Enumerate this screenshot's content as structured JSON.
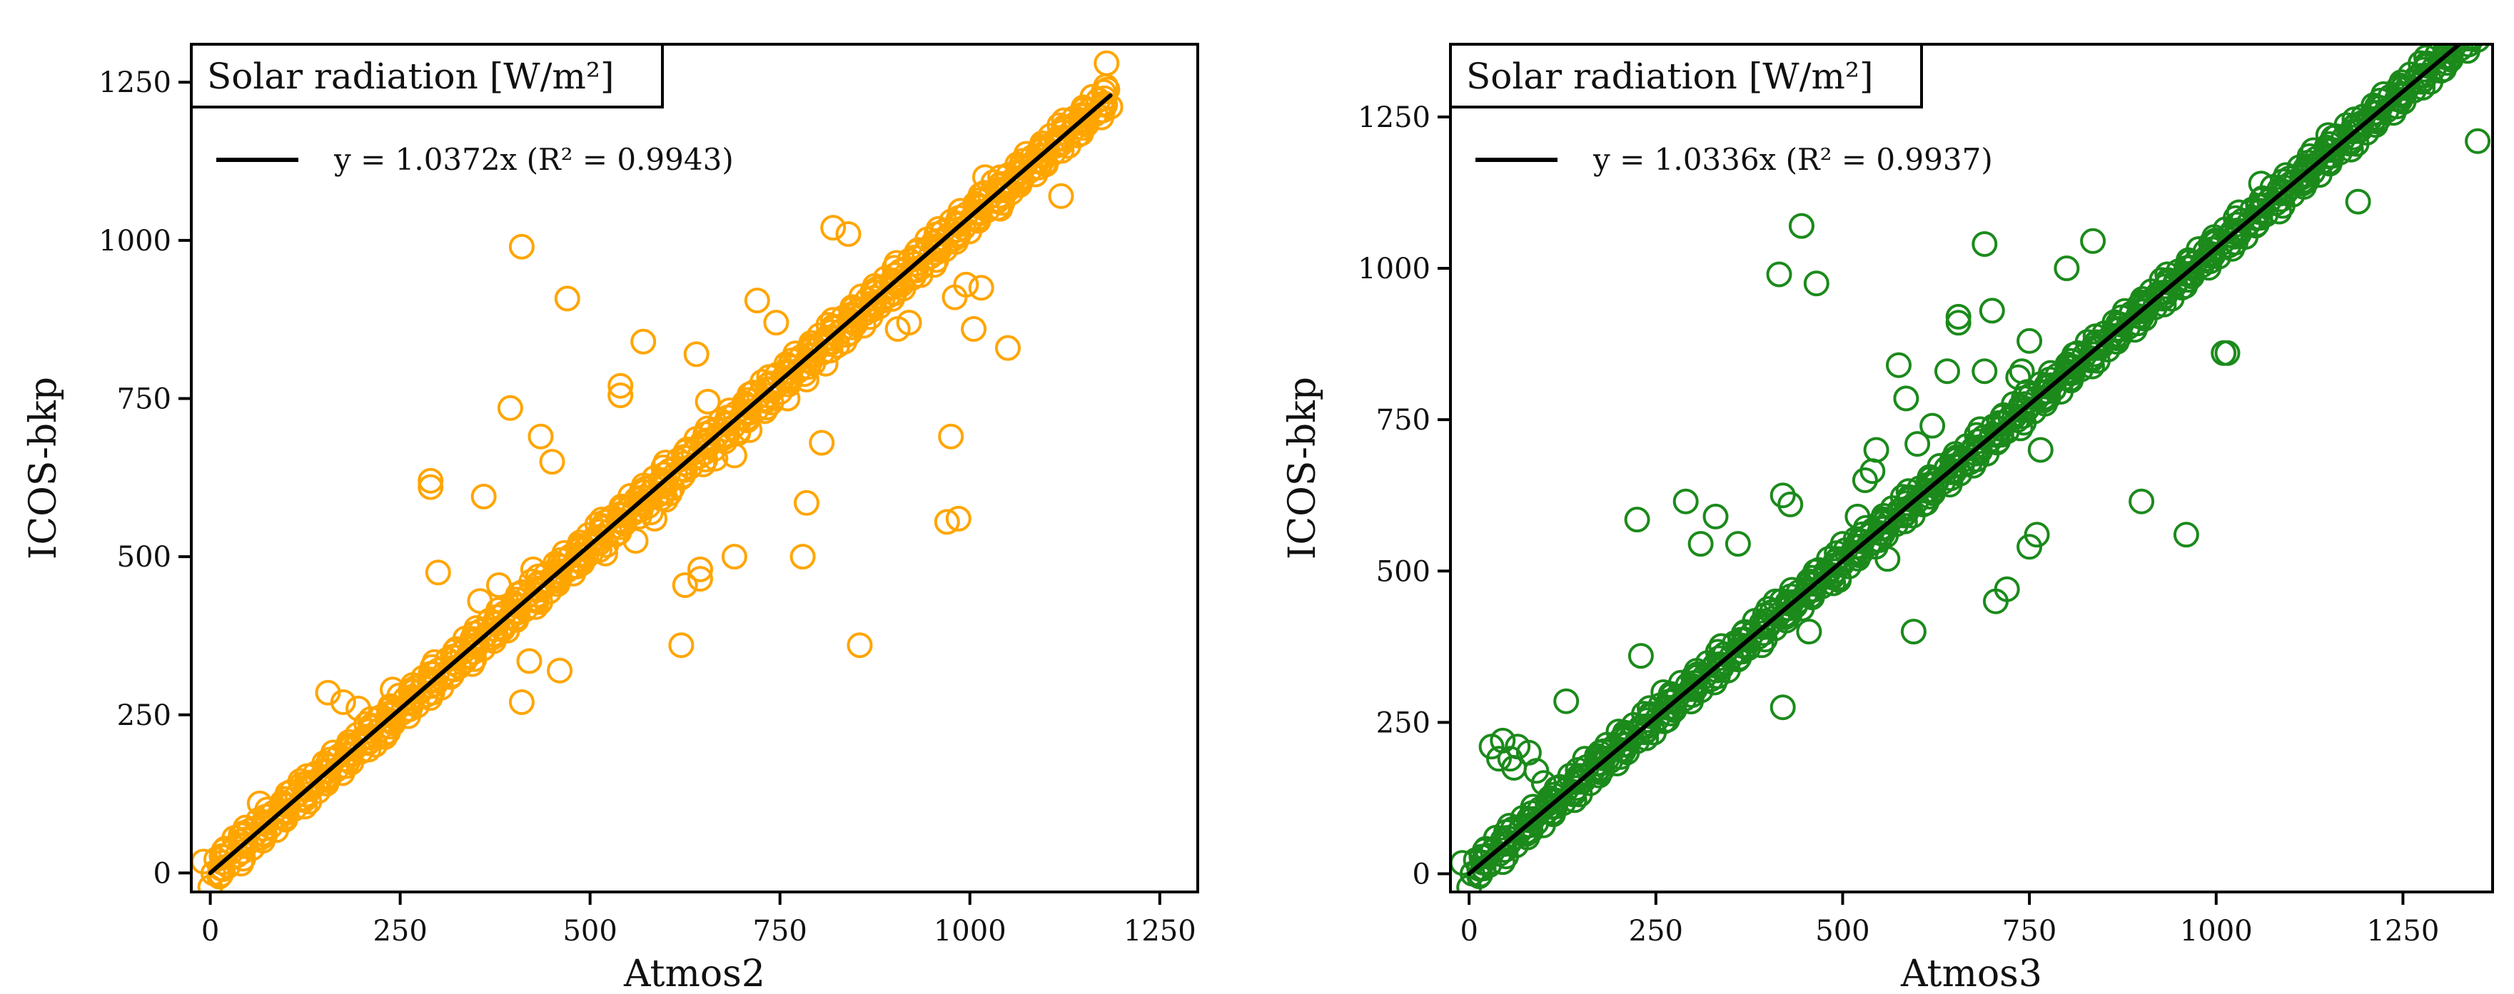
{
  "chart_data": [
    {
      "type": "scatter",
      "title": "Solar radiation [W/m²]",
      "xlabel": "Atmos2",
      "ylabel": "ICOS-bkp",
      "xlim": [
        -25,
        1300
      ],
      "ylim": [
        -30,
        1310
      ],
      "xticks": [
        0,
        250,
        500,
        750,
        1000,
        1250
      ],
      "yticks": [
        0,
        250,
        500,
        750,
        1000,
        1250
      ],
      "grid": false,
      "legend_position": "top-left",
      "color": "#FFA500",
      "fit": {
        "label": "y = 1.0372x (R² = 0.9943)",
        "slope": 1.0372,
        "x_range": [
          0,
          1185
        ],
        "color": "#000000"
      },
      "series": [
        {
          "name": "observations",
          "points": [
            [
              410,
              990
            ],
            [
              470,
              908
            ],
            [
              290,
              620
            ],
            [
              290,
              610
            ],
            [
              360,
              595
            ],
            [
              300,
              475
            ],
            [
              395,
              735
            ],
            [
              435,
              690
            ],
            [
              450,
              650
            ],
            [
              410,
              270
            ],
            [
              420,
              335
            ],
            [
              460,
              320
            ],
            [
              540,
              770
            ],
            [
              540,
              755
            ],
            [
              570,
              840
            ],
            [
              585,
              560
            ],
            [
              605,
              600
            ],
            [
              655,
              745
            ],
            [
              640,
              820
            ],
            [
              695,
              695
            ],
            [
              720,
              905
            ],
            [
              745,
              870
            ],
            [
              625,
              455
            ],
            [
              645,
              465
            ],
            [
              645,
              480
            ],
            [
              690,
              500
            ],
            [
              620,
              360
            ],
            [
              780,
              500
            ],
            [
              785,
              585
            ],
            [
              805,
              680
            ],
            [
              820,
              1020
            ],
            [
              840,
              1010
            ],
            [
              855,
              360
            ],
            [
              860,
              890
            ],
            [
              905,
              860
            ],
            [
              920,
              870
            ],
            [
              975,
              690
            ],
            [
              970,
              555
            ],
            [
              985,
              560
            ],
            [
              1005,
              860
            ],
            [
              1050,
              830
            ],
            [
              1015,
              925
            ],
            [
              995,
              930
            ],
            [
              980,
              910
            ],
            [
              1020,
              1100
            ],
            [
              1040,
              1050
            ],
            [
              1120,
              1070
            ],
            [
              1180,
              1280
            ],
            [
              1150,
              1190
            ],
            [
              1100,
              1120
            ],
            [
              65,
              110
            ],
            [
              155,
              285
            ],
            [
              175,
              270
            ],
            [
              195,
              260
            ],
            [
              230,
              215
            ],
            [
              240,
              290
            ],
            [
              265,
              275
            ],
            [
              290,
              315
            ],
            [
              355,
              430
            ],
            [
              380,
              455
            ],
            [
              405,
              440
            ],
            [
              425,
              480
            ],
            [
              455,
              470
            ],
            [
              500,
              520
            ],
            [
              520,
              505
            ],
            [
              560,
              525
            ],
            [
              580,
              570
            ],
            [
              600,
              590
            ],
            [
              665,
              655
            ],
            [
              690,
              660
            ],
            [
              710,
              700
            ],
            [
              730,
              730
            ],
            [
              760,
              750
            ],
            [
              785,
              780
            ],
            [
              810,
              805
            ],
            [
              835,
              840
            ],
            [
              860,
              865
            ],
            [
              885,
              905
            ],
            [
              910,
              930
            ],
            [
              935,
              945
            ],
            [
              960,
              985
            ],
            [
              985,
              1010
            ],
            [
              1010,
              1035
            ],
            [
              1050,
              1080
            ],
            [
              1085,
              1125
            ],
            [
              1115,
              1150
            ],
            [
              1140,
              1185
            ],
            [
              335,
              335
            ],
            [
              345,
              370
            ],
            [
              385,
              385
            ],
            [
              430,
              430
            ],
            [
              495,
              500
            ],
            [
              565,
              590
            ],
            [
              600,
              615
            ],
            [
              650,
              680
            ],
            [
              40,
              60
            ],
            [
              120,
              140
            ],
            [
              100,
              95
            ],
            [
              205,
              215
            ],
            [
              480,
              485
            ],
            [
              520,
              555
            ]
          ]
        }
      ]
    },
    {
      "type": "scatter",
      "title": "Solar radiation [W/m²]",
      "xlabel": "Atmos3",
      "ylabel": "ICOS-bkp",
      "xlim": [
        -25,
        1370
      ],
      "ylim": [
        -30,
        1370
      ],
      "xticks": [
        0,
        250,
        500,
        750,
        1000,
        1250
      ],
      "yticks": [
        0,
        250,
        500,
        750,
        1000,
        1250
      ],
      "grid": false,
      "legend_position": "top-left",
      "color": "#1B8A1B",
      "fit": {
        "label": "y = 1.0336x (R² = 0.9937)",
        "slope": 1.0336,
        "x_range": [
          0,
          1350
        ],
        "color": "#000000"
      },
      "series": [
        {
          "name": "observations",
          "points": [
            [
              445,
              1070
            ],
            [
              415,
              990
            ],
            [
              465,
              975
            ],
            [
              290,
              615
            ],
            [
              225,
              585
            ],
            [
              230,
              360
            ],
            [
              310,
              545
            ],
            [
              330,
              590
            ],
            [
              360,
              545
            ],
            [
              420,
              625
            ],
            [
              430,
              610
            ],
            [
              410,
              450
            ],
            [
              420,
              275
            ],
            [
              455,
              400
            ],
            [
              495,
              485
            ],
            [
              500,
              545
            ],
            [
              520,
              590
            ],
            [
              540,
              665
            ],
            [
              545,
              700
            ],
            [
              575,
              840
            ],
            [
              585,
              785
            ],
            [
              600,
              710
            ],
            [
              595,
              400
            ],
            [
              620,
              740
            ],
            [
              640,
              830
            ],
            [
              655,
              910
            ],
            [
              655,
              920
            ],
            [
              690,
              1040
            ],
            [
              690,
              830
            ],
            [
              700,
              930
            ],
            [
              705,
              450
            ],
            [
              720,
              470
            ],
            [
              735,
              820
            ],
            [
              740,
              830
            ],
            [
              750,
              880
            ],
            [
              750,
              540
            ],
            [
              760,
              560
            ],
            [
              765,
              700
            ],
            [
              800,
              1000
            ],
            [
              835,
              1045
            ],
            [
              900,
              615
            ],
            [
              905,
              935
            ],
            [
              960,
              560
            ],
            [
              1010,
              860
            ],
            [
              1015,
              860
            ],
            [
              1060,
              1140
            ],
            [
              1115,
              1150
            ],
            [
              1130,
              1195
            ],
            [
              1150,
              1220
            ],
            [
              1190,
              1110
            ],
            [
              1195,
              1240
            ],
            [
              1250,
              1285
            ],
            [
              1350,
              1210
            ],
            [
              30,
              210
            ],
            [
              40,
              190
            ],
            [
              45,
              220
            ],
            [
              55,
              190
            ],
            [
              60,
              175
            ],
            [
              65,
              210
            ],
            [
              80,
              200
            ],
            [
              90,
              170
            ],
            [
              100,
              150
            ],
            [
              130,
              285
            ],
            [
              155,
              190
            ],
            [
              175,
              200
            ],
            [
              200,
              235
            ],
            [
              260,
              300
            ],
            [
              300,
              310
            ],
            [
              340,
              345
            ],
            [
              370,
              375
            ],
            [
              400,
              410
            ],
            [
              440,
              450
            ],
            [
              480,
              495
            ],
            [
              515,
              530
            ],
            [
              555,
              570
            ],
            [
              590,
              605
            ],
            [
              625,
              645
            ],
            [
              660,
              675
            ],
            [
              700,
              725
            ],
            [
              730,
              755
            ],
            [
              770,
              795
            ],
            [
              800,
              830
            ],
            [
              840,
              870
            ],
            [
              870,
              900
            ],
            [
              910,
              945
            ],
            [
              945,
              975
            ],
            [
              985,
              1015
            ],
            [
              1020,
              1055
            ],
            [
              1060,
              1095
            ],
            [
              1100,
              1140
            ],
            [
              1130,
              1170
            ],
            [
              25,
              30
            ],
            [
              70,
              75
            ],
            [
              105,
              115
            ],
            [
              150,
              160
            ],
            [
              185,
              190
            ],
            [
              530,
              650
            ],
            [
              560,
              520
            ]
          ]
        }
      ]
    }
  ]
}
